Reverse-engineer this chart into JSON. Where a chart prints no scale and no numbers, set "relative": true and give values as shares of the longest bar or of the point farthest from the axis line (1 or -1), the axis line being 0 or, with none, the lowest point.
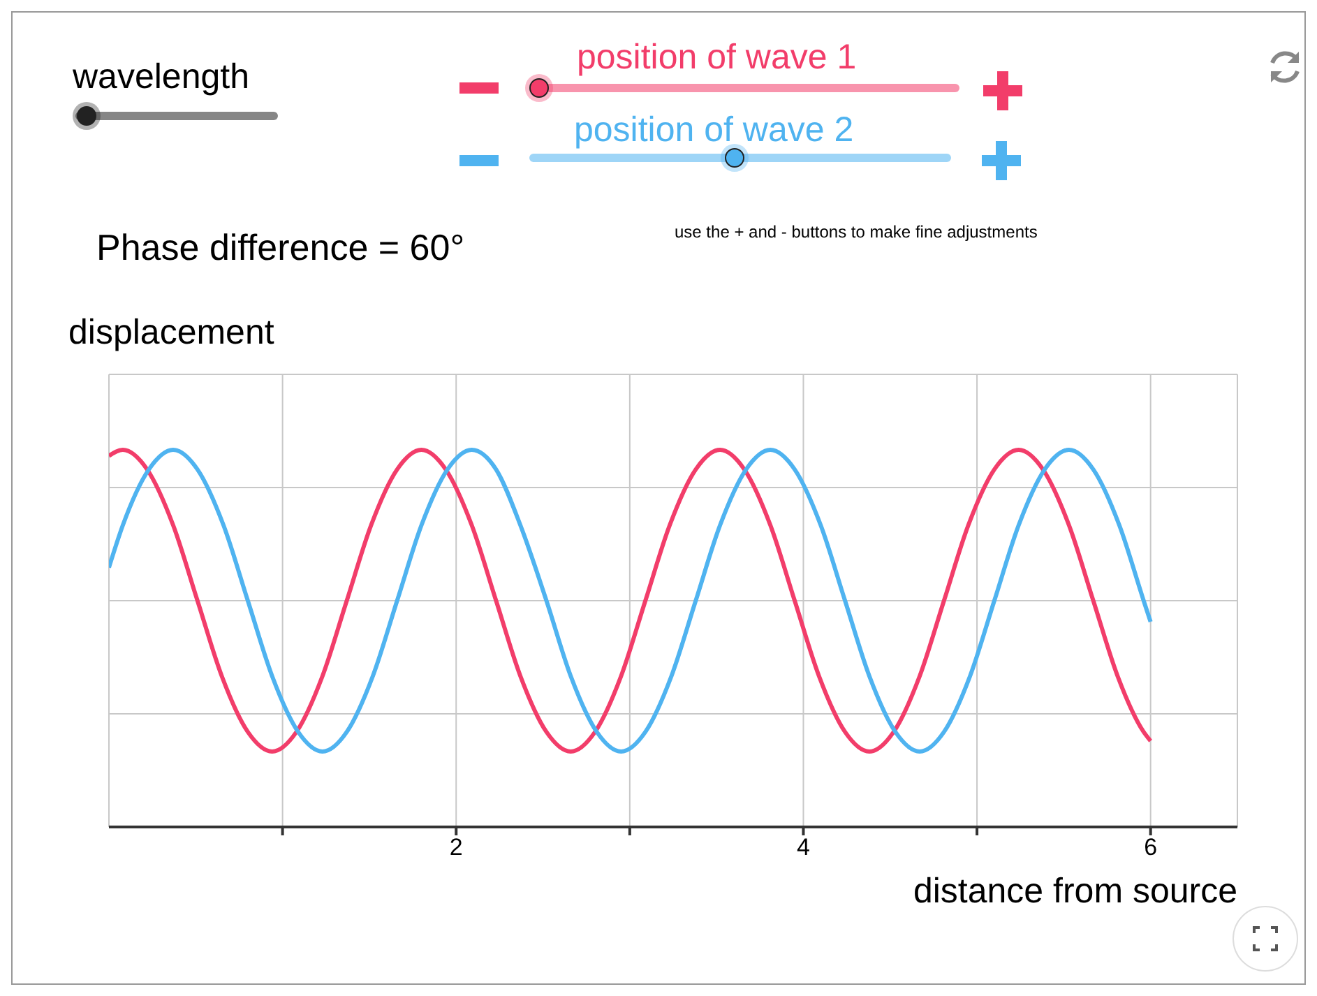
{
  "chart_data": {
    "type": "line",
    "relative": true,
    "xlabel": "distance from source",
    "ylabel": "displacement",
    "xlim": [
      0,
      6.5
    ],
    "xticks": [
      {
        "value": 1,
        "label": null
      },
      2,
      {
        "value": 3,
        "label": null
      },
      4,
      {
        "value": 5,
        "label": null
      },
      6
    ],
    "grid": true,
    "legend": false,
    "marker": "none",
    "line_style": "solid",
    "annotations": [
      "wavelength",
      "position of wave 1",
      "position of wave 2",
      "Phase difference = 60°",
      "use the + and - buttons to make fine adjustments"
    ],
    "series": [
      {
        "color": "#f23d6a",
        "x": [
          0,
          0.08,
          0.22,
          0.37,
          0.51,
          0.65,
          0.8,
          0.94,
          1.08,
          1.23,
          1.37,
          1.51,
          1.66,
          1.8,
          1.94,
          2.09,
          2.23,
          2.37,
          2.52,
          2.66,
          2.8,
          2.95,
          3.09,
          3.23,
          3.38,
          3.52,
          3.66,
          3.81,
          3.95,
          4.09,
          4.24,
          4.38,
          4.52,
          4.67,
          4.81,
          4.95,
          5.1,
          5.24,
          5.38,
          5.53,
          5.67,
          5.81,
          5.96,
          6
        ],
        "values": [
          0.96,
          1,
          0.87,
          0.5,
          0,
          -0.5,
          -0.87,
          -1,
          -0.87,
          -0.5,
          0,
          0.5,
          0.87,
          1,
          0.87,
          0.5,
          0,
          -0.5,
          -0.87,
          -1,
          -0.87,
          -0.5,
          0,
          0.5,
          0.87,
          1,
          0.87,
          0.5,
          0,
          -0.5,
          -0.87,
          -1,
          -0.87,
          -0.5,
          0,
          0.5,
          0.87,
          1,
          0.87,
          0.5,
          0,
          -0.5,
          -0.87,
          -0.93
        ]
      },
      {
        "color": "#4fb3f0",
        "x": [
          0,
          0.08,
          0.23,
          0.37,
          0.51,
          0.66,
          0.8,
          0.94,
          1.09,
          1.23,
          1.37,
          1.52,
          1.66,
          1.8,
          1.95,
          2.09,
          2.23,
          2.37,
          2.52,
          2.66,
          2.81,
          2.95,
          3.09,
          3.24,
          3.38,
          3.52,
          3.67,
          3.81,
          3.95,
          4.1,
          4.24,
          4.38,
          4.53,
          4.67,
          4.81,
          4.96,
          5.1,
          5.24,
          5.39,
          5.53,
          5.67,
          5.82,
          5.96,
          6
        ],
        "values": [
          0.22,
          0.5,
          0.87,
          1,
          0.87,
          0.5,
          0,
          -0.5,
          -0.87,
          -1,
          -0.87,
          -0.5,
          0,
          0.5,
          0.87,
          1,
          0.87,
          0.5,
          0,
          -0.5,
          -0.87,
          -1,
          -0.87,
          -0.5,
          0,
          0.5,
          0.87,
          1,
          0.87,
          0.5,
          0,
          -0.5,
          -0.87,
          -1,
          -0.87,
          -0.5,
          0,
          0.5,
          0.87,
          1,
          0.87,
          0.5,
          0,
          -0.14
        ]
      }
    ]
  }
}
